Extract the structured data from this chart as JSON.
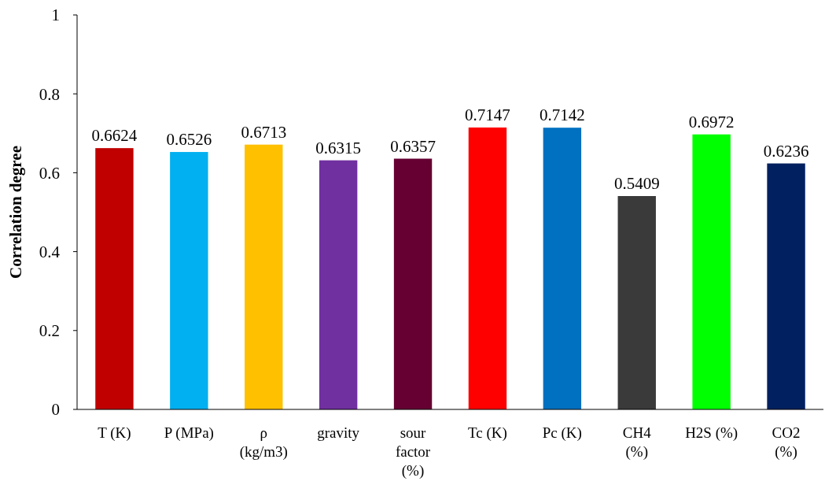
{
  "chart_data": {
    "type": "bar",
    "ylabel": "Correlation degree",
    "categories": [
      "T (K)",
      "P (MPa)",
      "ρ (kg/m3)",
      "gravity",
      "sour factor (%)",
      "Tc (K)",
      "Pc (K)",
      "CH4 (%)",
      "H2S (%)",
      "CO2 (%)"
    ],
    "values": [
      0.6624,
      0.6526,
      0.6713,
      0.6315,
      0.6357,
      0.7147,
      0.7142,
      0.5409,
      0.6972,
      0.6236
    ],
    "colors": [
      "#c00000",
      "#00b0f0",
      "#ffc000",
      "#7030a0",
      "#660033",
      "#ff0000",
      "#0070c0",
      "#3a3a3a",
      "#00ff00",
      "#002060"
    ],
    "ylim": [
      0,
      1
    ],
    "yticks": [
      0,
      0.2,
      0.4,
      0.6,
      0.8,
      1
    ],
    "data_labels": true,
    "grid": false
  }
}
